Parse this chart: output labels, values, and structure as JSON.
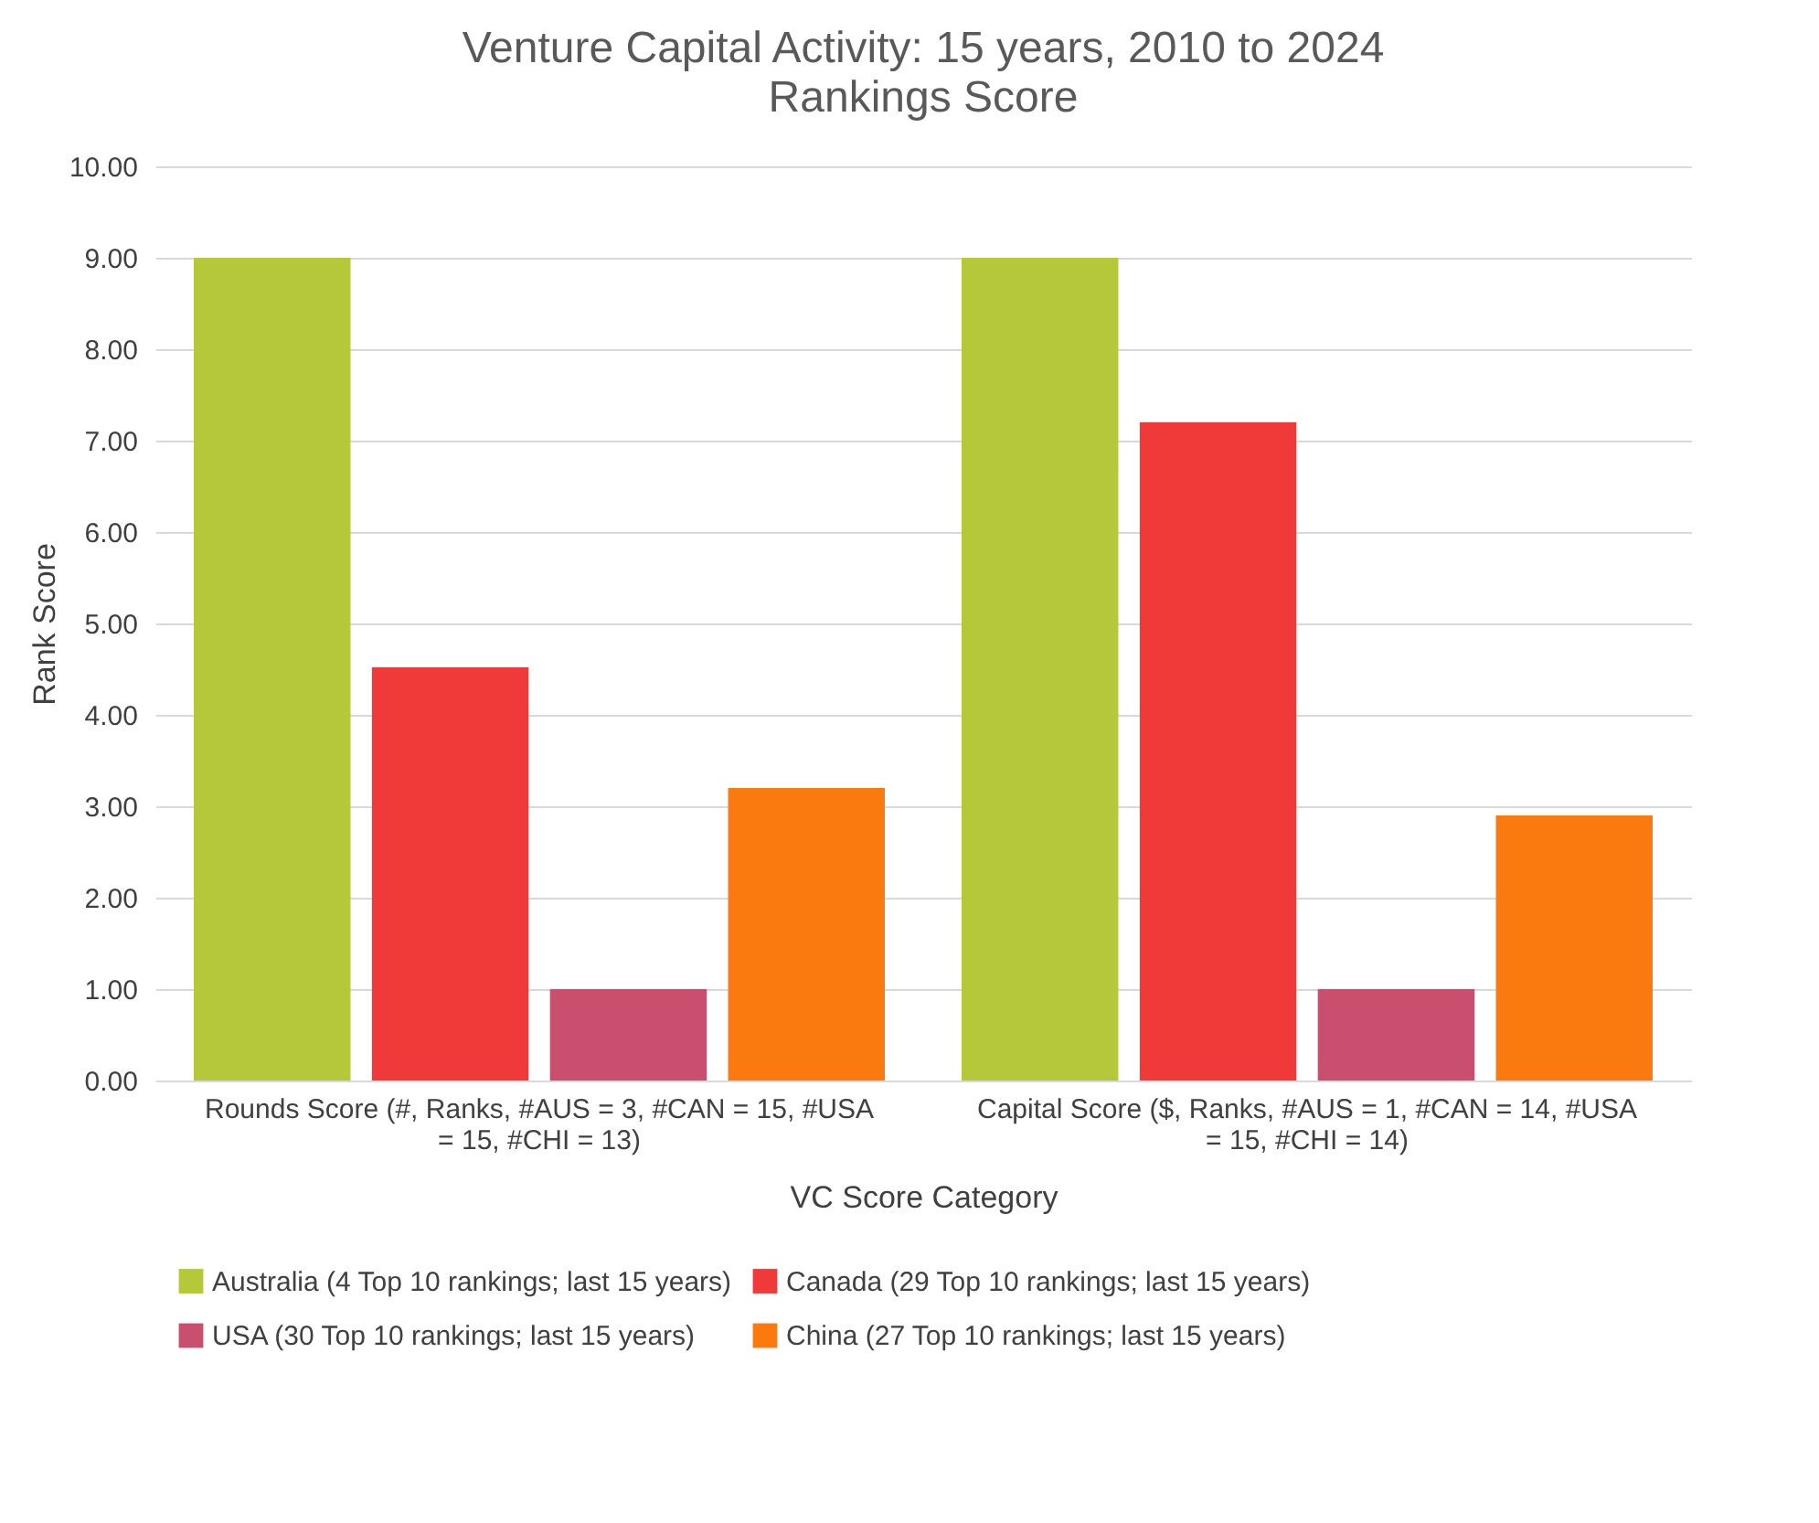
{
  "chart_data": {
    "type": "bar",
    "title": "Venture Capital Activity: 15 years, 2010 to 2024",
    "subtitle": "Rankings Score",
    "xlabel": "VC Score Category",
    "ylabel": "Rank Score",
    "categories": [
      "Rounds Score (#, Ranks, #AUS = 3, #CAN = 15, #USA = 15, #CHI = 13)",
      "Capital Score ($, Ranks, #AUS = 1, #CAN = 14, #USA = 15, #CHI = 14)"
    ],
    "series": [
      {
        "name": "Australia (4 Top 10 rankings; last 15 years)",
        "color": "#b4c83a",
        "values": [
          9.0,
          9.0
        ]
      },
      {
        "name": "Canada (29 Top 10 rankings; last 15 years)",
        "color": "#f03a3a",
        "values": [
          4.52,
          7.2
        ]
      },
      {
        "name": "USA (30 Top 10 rankings; last 15 years)",
        "color": "#c8506e",
        "values": [
          1.0,
          1.0
        ]
      },
      {
        "name": "China (27 Top 10 rankings; last 15 years)",
        "color": "#fa7a10",
        "values": [
          3.2,
          2.9
        ]
      }
    ],
    "ylim": [
      0,
      10
    ],
    "yticks": [
      {
        "value": 0,
        "label": "0.00"
      },
      {
        "value": 1,
        "label": "1.00"
      },
      {
        "value": 2,
        "label": "2.00"
      },
      {
        "value": 3,
        "label": "3.00"
      },
      {
        "value": 4,
        "label": "4.00"
      },
      {
        "value": 5,
        "label": "5.00"
      },
      {
        "value": 6,
        "label": "6.00"
      },
      {
        "value": 7,
        "label": "7.00"
      },
      {
        "value": 8,
        "label": "8.00"
      },
      {
        "value": 9,
        "label": "9.00"
      },
      {
        "value": 10,
        "label": "10.00"
      }
    ],
    "grid": "y",
    "legend": "bottom"
  }
}
